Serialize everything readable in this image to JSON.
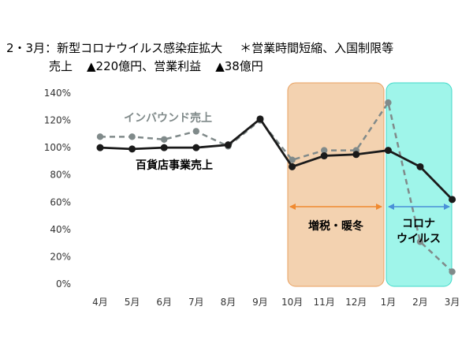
{
  "header": {
    "title": "2・3月：新型コロナウイルス感染症拡大",
    "note": "＊営業時間短縮、入国制限等",
    "sales_label": "売上",
    "sales_value": "▲220億円、営業利益",
    "profit_value": "▲38億円"
  },
  "colors": {
    "inbound": "#808a8a",
    "dept_store": "#1a1a1a",
    "tax_region": "#f3d2b0",
    "tax_border": "#e8a060",
    "tax_arrow": "#f08a30",
    "corona_region": "#9ff5ea",
    "corona_border": "#40d8c8",
    "corona_arrow": "#4a90d8"
  },
  "chart_data": {
    "type": "line",
    "categories": [
      "4月",
      "5月",
      "6月",
      "7月",
      "8月",
      "9月",
      "10月",
      "11月",
      "12月",
      "1月",
      "2月",
      "3月"
    ],
    "series": [
      {
        "name": "インバウンド売上",
        "style": "dashed",
        "values": [
          108,
          108,
          106,
          112,
          101,
          120,
          91,
          98,
          98,
          133,
          31,
          9
        ]
      },
      {
        "name": "百貨店事業売上",
        "style": "solid",
        "values": [
          100,
          99,
          100,
          100,
          102,
          121,
          86,
          94,
          95,
          98,
          86,
          62
        ]
      }
    ],
    "ylim": [
      0,
      140
    ],
    "yticks": [
      "0%",
      "20%",
      "40%",
      "60%",
      "80%",
      "100%",
      "120%",
      "140%"
    ],
    "grid": false,
    "annotations": [
      {
        "label": "増税・暖冬",
        "from": "10月",
        "to": "1月"
      },
      {
        "label_lines": [
          "コロナ",
          "ウイルス"
        ],
        "from": "1月",
        "to": "3月"
      }
    ]
  }
}
